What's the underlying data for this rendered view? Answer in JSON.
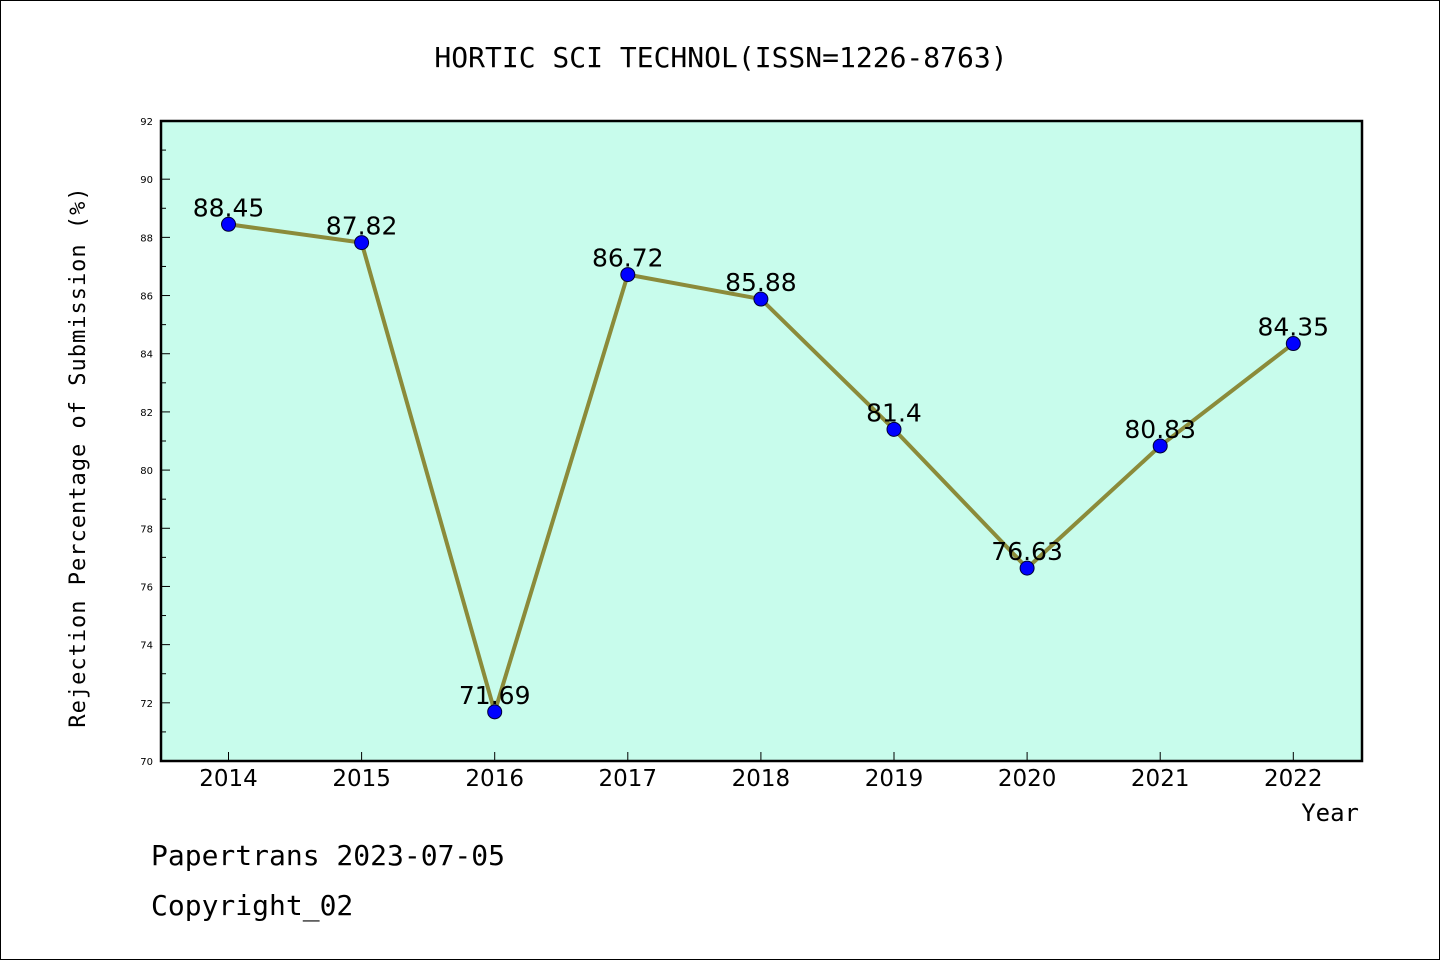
{
  "colors": {
    "plot_background": "#c8fcec",
    "line": "#8b8b3a",
    "marker": "#0000ff",
    "axes": "#000000"
  },
  "footer": {
    "line1": "Papertrans 2023-07-05",
    "line2": "Copyright_02"
  },
  "chart_data": {
    "type": "line",
    "title": "HORTIC SCI TECHNOL(ISSN=1226-8763)",
    "xlabel": "Year",
    "ylabel": "Rejection Percentage of Submission (%)",
    "categories": [
      "2014",
      "2015",
      "2016",
      "2017",
      "2018",
      "2019",
      "2020",
      "2021",
      "2022"
    ],
    "series": [
      {
        "values": [
          88.45,
          87.82,
          71.69,
          86.72,
          85.88,
          81.4,
          76.63,
          80.83,
          84.35
        ],
        "labels": [
          "88.45",
          "87.82",
          "71.69",
          "86.72",
          "85.88",
          "81.4",
          "76.63",
          "80.83",
          "84.35"
        ]
      }
    ],
    "ylim": [
      70,
      92
    ],
    "yticks": [
      "70",
      "72",
      "74",
      "76",
      "78",
      "80",
      "82",
      "84",
      "86",
      "88",
      "90",
      "92"
    ],
    "grid": false,
    "legend": "none"
  }
}
